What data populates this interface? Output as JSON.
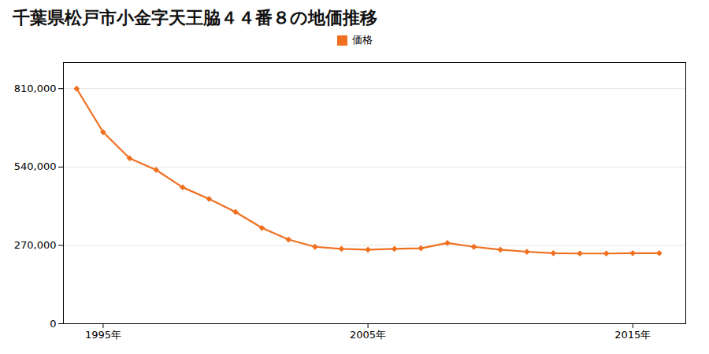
{
  "chart_data": {
    "type": "line",
    "title": "千葉県松戸市小金字天王脇４４番８の地価推移",
    "x": [
      1994,
      1995,
      1996,
      1997,
      1998,
      1999,
      2000,
      2001,
      2002,
      2003,
      2004,
      2005,
      2006,
      2007,
      2008,
      2009,
      2010,
      2011,
      2012,
      2013,
      2014,
      2015,
      2016
    ],
    "series": [
      {
        "name": "価格",
        "color": "#f07020",
        "marker": "diamond",
        "values": [
          810000,
          660000,
          570000,
          530000,
          470000,
          430000,
          385000,
          330000,
          290000,
          265000,
          258000,
          255000,
          258000,
          260000,
          278000,
          265000,
          255000,
          248000,
          243000,
          242000,
          242000,
          243000,
          243000
        ]
      }
    ],
    "xlim": [
      1993.5,
      2017
    ],
    "xticks": [
      {
        "value": 1995,
        "label": "1995年"
      },
      {
        "value": 2005,
        "label": "2005年"
      },
      {
        "value": 2015,
        "label": "2015年"
      }
    ],
    "ylim": [
      0,
      900000
    ],
    "yticks": [
      0,
      {
        "value": 270000,
        "label": "270,000"
      },
      {
        "value": 540000,
        "label": "540,000"
      },
      {
        "value": 810000,
        "label": "810,000"
      }
    ],
    "grid": true,
    "legend": "top"
  }
}
